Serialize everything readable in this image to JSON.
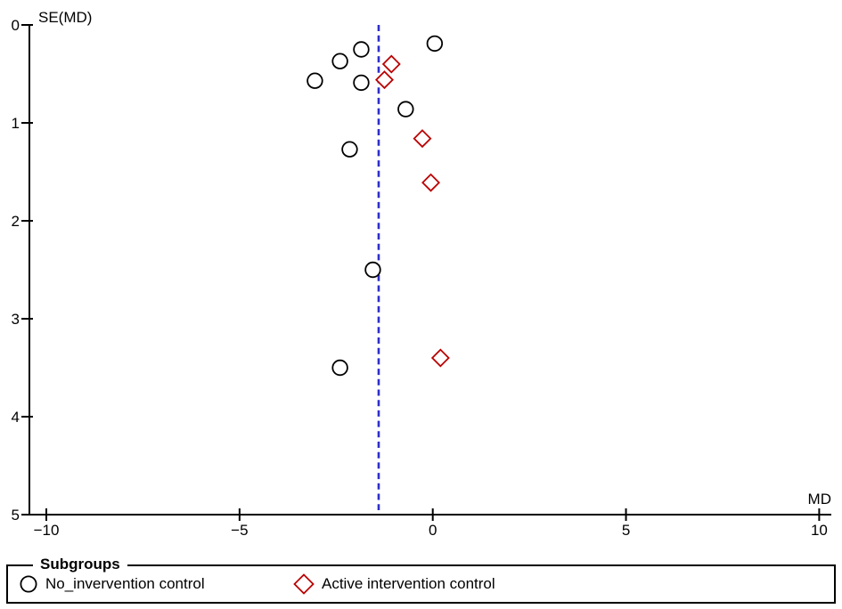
{
  "figure": {
    "ylabel": "SE(MD)",
    "xlabel": "MD"
  },
  "chart_data": {
    "type": "scatter",
    "title": "",
    "xlabel": "MD",
    "ylabel": "SE(MD)",
    "xlim": [
      -10,
      10
    ],
    "ylim": [
      0,
      5
    ],
    "y_axis_inverted": true,
    "grid": false,
    "x_ticks": [
      -10,
      -5,
      0,
      5,
      10
    ],
    "y_ticks": [
      0,
      1,
      2,
      3,
      4,
      5
    ],
    "x_tick_labels": [
      "−10",
      "−5",
      "0",
      "5",
      "10"
    ],
    "y_tick_labels": [
      "0",
      "1",
      "2",
      "3",
      "4",
      "5"
    ],
    "pooled_effect_line": {
      "md": -1.4,
      "style": "dashed",
      "color": "#2e2ecb"
    },
    "series": [
      {
        "name": "No_invervention control",
        "marker": "circle",
        "color": "#000000",
        "points": [
          {
            "md": -3.05,
            "se": 0.57
          },
          {
            "md": -2.4,
            "se": 0.37
          },
          {
            "md": -1.85,
            "se": 0.25
          },
          {
            "md": -1.85,
            "se": 0.59
          },
          {
            "md": 0.05,
            "se": 0.19
          },
          {
            "md": -0.7,
            "se": 0.86
          },
          {
            "md": -2.15,
            "se": 1.27
          },
          {
            "md": -1.55,
            "se": 2.5
          },
          {
            "md": -2.4,
            "se": 3.5
          }
        ]
      },
      {
        "name": "Active intervention control",
        "marker": "diamond",
        "color": "#bb0000",
        "points": [
          {
            "md": -1.07,
            "se": 0.4
          },
          {
            "md": -1.25,
            "se": 0.56
          },
          {
            "md": -0.27,
            "se": 1.16
          },
          {
            "md": -0.05,
            "se": 1.61
          },
          {
            "md": 0.2,
            "se": 3.4
          }
        ]
      }
    ]
  },
  "legend": {
    "title": "Subgroups",
    "items": [
      {
        "label": "No_invervention control",
        "marker": "circle",
        "color": "#000000"
      },
      {
        "label": "Active intervention control",
        "marker": "diamond",
        "color": "#bb0000"
      }
    ]
  }
}
